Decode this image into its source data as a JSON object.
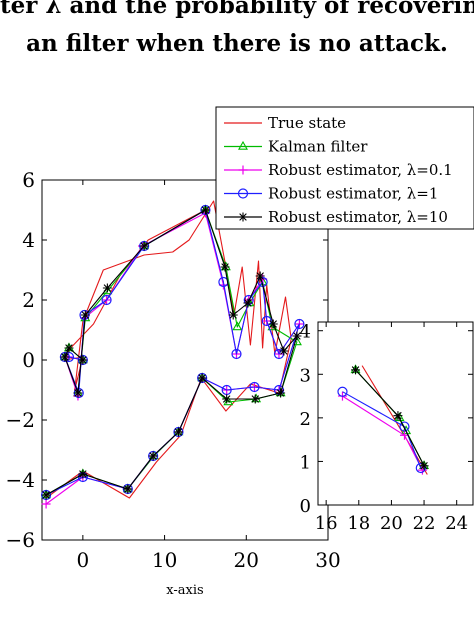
{
  "caption": {
    "line1": "ter  λ  and the probability of recoverin",
    "line2": "an filter when there is no attack."
  },
  "colors": {
    "true_state": "#e41a1c",
    "kalman": "#00bb00",
    "robust_01": "#ee00ee",
    "robust_1": "#1f1fff",
    "robust_10": "#000000"
  },
  "chart_data": [
    {
      "type": "line",
      "title": "",
      "xlabel": "x-axis",
      "ylabel": "",
      "xlim": [
        -5,
        30
      ],
      "ylim": [
        -6,
        6
      ],
      "xticks": [
        "0",
        "10",
        "20",
        "30"
      ],
      "yticks": [
        "−6",
        "−4",
        "−2",
        "0",
        "2",
        "4",
        "6"
      ],
      "legend_position": "top-right",
      "series": [
        {
          "name": "True state",
          "marker": "none",
          "color_key": "true_state",
          "points": [
            [
              -4.5,
              -4.6
            ],
            [
              0,
              -3.7
            ],
            [
              5.7,
              -4.6
            ],
            [
              9,
              -3.4
            ],
            [
              12,
              -2.5
            ],
            [
              14.5,
              -0.6
            ],
            [
              17.5,
              -1.7
            ],
            [
              20.5,
              -0.8
            ],
            [
              24,
              -1.1
            ],
            [
              25.5,
              0.7
            ],
            [
              24.8,
              2.1
            ],
            [
              23.5,
              0.2
            ],
            [
              22.5,
              2.5
            ],
            [
              22,
              0.4
            ],
            [
              21.5,
              3.3
            ],
            [
              20.5,
              0.5
            ],
            [
              19.5,
              3.1
            ],
            [
              18.5,
              1.5
            ],
            [
              17.5,
              3.1
            ],
            [
              16,
              5.3
            ],
            [
              13,
              4.0
            ],
            [
              11,
              3.6
            ],
            [
              7.5,
              3.5
            ],
            [
              2.5,
              3.0
            ],
            [
              0,
              1.3
            ],
            [
              -1.0,
              -1.0
            ],
            [
              0,
              0.1
            ],
            [
              -2.3,
              0.0
            ],
            [
              -1.5,
              0.4
            ],
            [
              1.3,
              1.2
            ],
            [
              2.5,
              1.8
            ],
            [
              4.5,
              2.8
            ],
            [
              8.0,
              4.0
            ],
            [
              11.5,
              4.5
            ],
            [
              15,
              5.0
            ]
          ]
        },
        {
          "name": "Kalman filter",
          "marker": "triangle",
          "color_key": "kalman",
          "points": [
            [
              -4.5,
              -4.5
            ],
            [
              0,
              -3.8
            ],
            [
              5.5,
              -4.3
            ],
            [
              8.7,
              -3.2
            ],
            [
              11.7,
              -2.4
            ],
            [
              14.6,
              -0.6
            ],
            [
              17.8,
              -1.4
            ],
            [
              21.2,
              -1.3
            ],
            [
              24.2,
              -1.1
            ],
            [
              26.2,
              0.6
            ],
            [
              23.2,
              1.1
            ],
            [
              22.0,
              2.6
            ],
            [
              20.4,
              1.9
            ],
            [
              18.9,
              1.1
            ],
            [
              17.5,
              3.1
            ],
            [
              15,
              5.0
            ],
            [
              7.5,
              3.8
            ],
            [
              3,
              2.3
            ],
            [
              0.3,
              1.4
            ],
            [
              -0.6,
              -1.1
            ],
            [
              -2.2,
              0.1
            ],
            [
              -1.7,
              0.4
            ],
            [
              0,
              0.0
            ]
          ]
        },
        {
          "name": "Robust estimator, λ=0.1",
          "marker": "plus",
          "color_key": "robust_01",
          "points": [
            [
              -4.5,
              -4.8
            ],
            [
              0,
              -3.9
            ],
            [
              5.5,
              -4.3
            ],
            [
              8.6,
              -3.2
            ],
            [
              11.7,
              -2.4
            ],
            [
              14.6,
              -0.6
            ],
            [
              17.6,
              -1.0
            ],
            [
              21.0,
              -0.9
            ],
            [
              24.0,
              -1.0
            ],
            [
              26.5,
              1.2
            ],
            [
              24.0,
              0.2
            ],
            [
              22.5,
              1.3
            ],
            [
              22.0,
              2.7
            ],
            [
              20.3,
              2.0
            ],
            [
              18.8,
              0.2
            ],
            [
              17.2,
              2.5
            ],
            [
              15,
              4.9
            ],
            [
              7.3,
              3.8
            ],
            [
              2.9,
              2.0
            ],
            [
              0.2,
              1.4
            ],
            [
              -0.6,
              -1.2
            ],
            [
              -2.2,
              0.1
            ],
            [
              -1.8,
              0.1
            ],
            [
              0,
              0.0
            ]
          ]
        },
        {
          "name": "Robust estimator, λ=1",
          "marker": "circle",
          "color_key": "robust_1",
          "points": [
            [
              -4.5,
              -4.5
            ],
            [
              0,
              -3.9
            ],
            [
              5.5,
              -4.3
            ],
            [
              8.6,
              -3.2
            ],
            [
              11.7,
              -2.4
            ],
            [
              14.6,
              -0.6
            ],
            [
              17.6,
              -1.0
            ],
            [
              21.0,
              -0.9
            ],
            [
              24.0,
              -1.0
            ],
            [
              26.5,
              1.2
            ],
            [
              24.0,
              0.2
            ],
            [
              22.5,
              1.3
            ],
            [
              22.0,
              2.6
            ],
            [
              20.3,
              2.0
            ],
            [
              18.8,
              0.2
            ],
            [
              17.2,
              2.6
            ],
            [
              15,
              5.0
            ],
            [
              7.5,
              3.8
            ],
            [
              2.9,
              2.0
            ],
            [
              0.2,
              1.5
            ],
            [
              -0.5,
              -1.1
            ],
            [
              -2.2,
              0.1
            ],
            [
              -1.7,
              0.1
            ],
            [
              0,
              0.0
            ]
          ]
        },
        {
          "name": "Robust estimator, λ=10",
          "marker": "star",
          "color_key": "robust_10",
          "points": [
            [
              -4.5,
              -4.5
            ],
            [
              0,
              -3.8
            ],
            [
              5.5,
              -4.3
            ],
            [
              8.6,
              -3.2
            ],
            [
              11.7,
              -2.4
            ],
            [
              14.6,
              -0.6
            ],
            [
              17.6,
              -1.3
            ],
            [
              21.1,
              -1.3
            ],
            [
              24.2,
              -1.1
            ],
            [
              26.2,
              0.8
            ],
            [
              24.6,
              0.3
            ],
            [
              23.3,
              1.2
            ],
            [
              21.7,
              2.8
            ],
            [
              20.2,
              1.9
            ],
            [
              18.4,
              1.5
            ],
            [
              17.4,
              3.1
            ],
            [
              15,
              5.0
            ],
            [
              7.5,
              3.8
            ],
            [
              3,
              2.4
            ],
            [
              0.3,
              1.5
            ],
            [
              -0.6,
              -1.1
            ],
            [
              -2.2,
              0.1
            ],
            [
              -1.7,
              0.4
            ],
            [
              0,
              0.0
            ]
          ]
        }
      ]
    },
    {
      "type": "line",
      "title": "",
      "xlabel": "",
      "ylabel": "",
      "xlim": [
        15.5,
        25
      ],
      "ylim": [
        0,
        4.2
      ],
      "xticks": [
        "16",
        "18",
        "20",
        "22",
        "24"
      ],
      "yticks": [
        "0",
        "1",
        "2",
        "3",
        "4"
      ],
      "series": [
        {
          "name": "True state",
          "marker": "none",
          "color_key": "true_state",
          "points": [
            [
              18.2,
              3.2
            ],
            [
              20.3,
              1.9
            ],
            [
              21.1,
              1.4
            ],
            [
              22.2,
              0.7
            ]
          ]
        },
        {
          "name": "Kalman filter",
          "marker": "triangle",
          "color_key": "kalman",
          "points": [
            [
              17.8,
              3.1
            ],
            [
              20.5,
              2.0
            ],
            [
              20.9,
              1.7
            ],
            [
              22.0,
              0.9
            ]
          ]
        },
        {
          "name": "Robust estimator, λ=0.1",
          "marker": "plus",
          "color_key": "robust_01",
          "points": [
            [
              17.0,
              2.5
            ],
            [
              20.8,
              1.6
            ],
            [
              21.9,
              0.8
            ]
          ]
        },
        {
          "name": "Robust estimator, λ=1",
          "marker": "circle",
          "color_key": "robust_1",
          "points": [
            [
              17.0,
              2.6
            ],
            [
              20.8,
              1.8
            ],
            [
              21.8,
              0.85
            ]
          ]
        },
        {
          "name": "Robust estimator, λ=10",
          "marker": "star",
          "color_key": "robust_10",
          "points": [
            [
              17.8,
              3.1
            ],
            [
              20.4,
              2.05
            ],
            [
              22.0,
              0.9
            ]
          ]
        }
      ]
    }
  ]
}
